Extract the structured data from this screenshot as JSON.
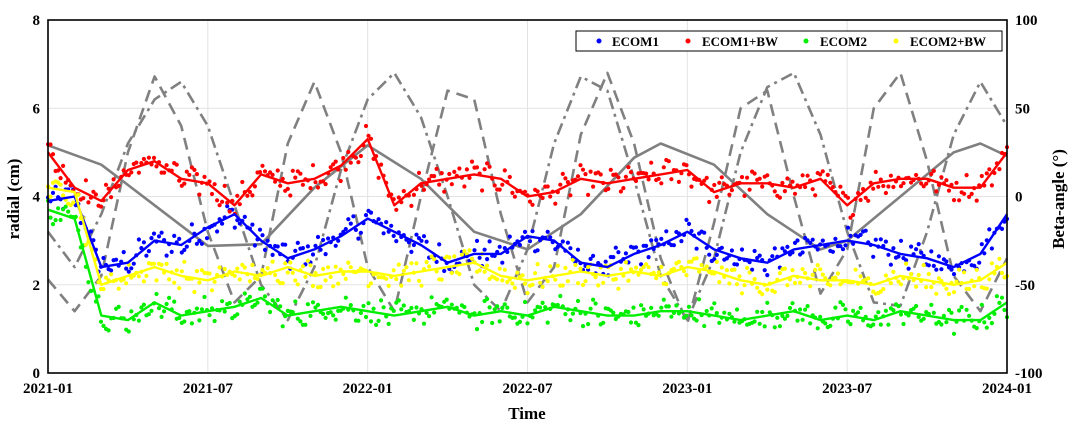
{
  "chart_data": {
    "type": "line",
    "xlabel": "Time",
    "ylabel_left": "radial (cm)",
    "ylabel_right": "Beta-angle (°)",
    "x_ticks": [
      "2021-01",
      "2021-07",
      "2022-01",
      "2022-07",
      "2023-01",
      "2023-07",
      "2024-01"
    ],
    "x_range": [
      "2021-01",
      "2024-01"
    ],
    "y_left_ticks": [
      "0",
      "2",
      "4",
      "6",
      "8"
    ],
    "y_left_range": [
      0,
      8
    ],
    "y_right_ticks": [
      "100",
      "50",
      "0",
      "-50",
      "-100"
    ],
    "y_right_range": [
      -100,
      100
    ],
    "grid": true,
    "legend_position": "top-right",
    "series": [
      {
        "name": "ECOM1",
        "color": "#0000ff",
        "axis": "left",
        "style": "points+smooth",
        "x": [
          "2021-01",
          "2021-02",
          "2021-03",
          "2021-04",
          "2021-05",
          "2021-06",
          "2021-07",
          "2021-08",
          "2021-09",
          "2021-10",
          "2021-11",
          "2021-12",
          "2022-01",
          "2022-02",
          "2022-03",
          "2022-04",
          "2022-05",
          "2022-06",
          "2022-07",
          "2022-08",
          "2022-09",
          "2022-10",
          "2022-11",
          "2022-12",
          "2023-01",
          "2023-02",
          "2023-03",
          "2023-04",
          "2023-05",
          "2023-06",
          "2023-07",
          "2023-08",
          "2023-09",
          "2023-10",
          "2023-11",
          "2023-12",
          "2024-01"
        ],
        "values": [
          3.9,
          4.0,
          2.4,
          2.5,
          3.0,
          2.9,
          3.3,
          3.6,
          3.0,
          2.6,
          2.8,
          3.1,
          3.5,
          3.2,
          2.9,
          2.5,
          2.7,
          2.7,
          3.1,
          3.0,
          2.5,
          2.4,
          2.7,
          2.9,
          3.2,
          2.8,
          2.6,
          2.5,
          2.8,
          2.9,
          3.0,
          2.9,
          2.7,
          2.6,
          2.4,
          2.7,
          3.6
        ]
      },
      {
        "name": "ECOM1+BW",
        "color": "#ff0000",
        "axis": "left",
        "style": "points+smooth",
        "x": [
          "2021-01",
          "2021-02",
          "2021-03",
          "2021-04",
          "2021-05",
          "2021-06",
          "2021-07",
          "2021-08",
          "2021-09",
          "2021-10",
          "2021-11",
          "2021-12",
          "2022-01",
          "2022-02",
          "2022-03",
          "2022-04",
          "2022-05",
          "2022-06",
          "2022-07",
          "2022-08",
          "2022-09",
          "2022-10",
          "2022-11",
          "2022-12",
          "2023-01",
          "2023-02",
          "2023-03",
          "2023-04",
          "2023-05",
          "2023-06",
          "2023-07",
          "2023-08",
          "2023-09",
          "2023-10",
          "2023-11",
          "2023-12",
          "2024-01"
        ],
        "values": [
          5.0,
          4.2,
          3.9,
          4.6,
          4.8,
          4.4,
          4.3,
          3.8,
          4.5,
          4.3,
          4.4,
          4.7,
          5.3,
          3.8,
          4.3,
          4.4,
          4.5,
          4.4,
          4.0,
          4.1,
          4.4,
          4.3,
          4.4,
          4.5,
          4.6,
          4.1,
          4.3,
          4.3,
          4.2,
          4.4,
          3.8,
          4.3,
          4.4,
          4.4,
          4.2,
          4.2,
          5.0
        ]
      },
      {
        "name": "ECOM2",
        "color": "#00ee00",
        "axis": "left",
        "style": "points+smooth",
        "x": [
          "2021-01",
          "2021-02",
          "2021-03",
          "2021-04",
          "2021-05",
          "2021-06",
          "2021-07",
          "2021-08",
          "2021-09",
          "2021-10",
          "2021-11",
          "2021-12",
          "2022-01",
          "2022-02",
          "2022-03",
          "2022-04",
          "2022-05",
          "2022-06",
          "2022-07",
          "2022-08",
          "2022-09",
          "2022-10",
          "2022-11",
          "2022-12",
          "2023-01",
          "2023-02",
          "2023-03",
          "2023-04",
          "2023-05",
          "2023-06",
          "2023-07",
          "2023-08",
          "2023-09",
          "2023-10",
          "2023-11",
          "2023-12",
          "2024-01"
        ],
        "values": [
          3.7,
          3.5,
          1.3,
          1.2,
          1.6,
          1.3,
          1.4,
          1.5,
          1.7,
          1.3,
          1.4,
          1.5,
          1.4,
          1.3,
          1.4,
          1.5,
          1.3,
          1.4,
          1.3,
          1.5,
          1.4,
          1.3,
          1.3,
          1.4,
          1.4,
          1.3,
          1.2,
          1.3,
          1.4,
          1.2,
          1.3,
          1.2,
          1.4,
          1.3,
          1.2,
          1.2,
          1.6
        ]
      },
      {
        "name": "ECOM2+BW",
        "color": "#ffff00",
        "axis": "left",
        "style": "points+smooth",
        "x": [
          "2021-01",
          "2021-02",
          "2021-03",
          "2021-04",
          "2021-05",
          "2021-06",
          "2021-07",
          "2021-08",
          "2021-09",
          "2021-10",
          "2021-11",
          "2021-12",
          "2022-01",
          "2022-02",
          "2022-03",
          "2022-04",
          "2022-05",
          "2022-06",
          "2022-07",
          "2022-08",
          "2022-09",
          "2022-10",
          "2022-11",
          "2022-12",
          "2023-01",
          "2023-02",
          "2023-03",
          "2023-04",
          "2023-05",
          "2023-06",
          "2023-07",
          "2023-08",
          "2023-09",
          "2023-10",
          "2023-11",
          "2023-12",
          "2024-01"
        ],
        "values": [
          4.2,
          4.1,
          2.0,
          2.2,
          2.4,
          2.2,
          2.1,
          2.3,
          2.2,
          2.4,
          2.2,
          2.3,
          2.3,
          2.2,
          2.3,
          2.4,
          2.5,
          2.2,
          2.1,
          2.2,
          2.3,
          2.2,
          2.3,
          2.2,
          2.4,
          2.3,
          2.1,
          2.0,
          2.2,
          2.1,
          2.1,
          2.0,
          2.2,
          2.1,
          2.0,
          2.1,
          2.5
        ]
      },
      {
        "name": "",
        "color": "#808080",
        "axis": "right",
        "style": "solid",
        "x": [
          "2021-01",
          "2021-03",
          "2021-05",
          "2021-07",
          "2021-09",
          "2021-11",
          "2022-01",
          "2022-03",
          "2022-05",
          "2022-07",
          "2022-09",
          "2022-11",
          "2022-12",
          "2023-02",
          "2023-04",
          "2023-06",
          "2023-07",
          "2023-09",
          "2023-11",
          "2023-12",
          "2024-01"
        ],
        "values": [
          29,
          18,
          -5,
          -28,
          -27,
          5,
          29,
          10,
          -20,
          -30,
          -10,
          22,
          30,
          18,
          -10,
          -30,
          -25,
          0,
          25,
          30,
          23
        ]
      },
      {
        "name": "",
        "color": "#808080",
        "axis": "right",
        "style": "dashed",
        "x": [
          "2021-01",
          "2021-02",
          "2021-03",
          "2021-04",
          "2021-05",
          "2021-06",
          "2021-07",
          "2021-08",
          "2021-09",
          "2021-10",
          "2021-11",
          "2021-12",
          "2022-01",
          "2022-02",
          "2022-03",
          "2022-04",
          "2022-05",
          "2022-06",
          "2022-07",
          "2022-08",
          "2022-09",
          "2022-10",
          "2022-11",
          "2022-12",
          "2023-01",
          "2023-02",
          "2023-03",
          "2023-04",
          "2023-05",
          "2023-06",
          "2023-07",
          "2023-08",
          "2023-09",
          "2023-10",
          "2023-11",
          "2023-12",
          "2024-01"
        ],
        "values": [
          -47,
          -65,
          -45,
          25,
          68,
          40,
          -20,
          -60,
          -45,
          30,
          65,
          25,
          -40,
          -65,
          0,
          60,
          55,
          -10,
          -60,
          -40,
          35,
          70,
          30,
          -35,
          -72,
          -15,
          50,
          60,
          0,
          -55,
          -30,
          50,
          70,
          20,
          -45,
          -65,
          -35
        ]
      },
      {
        "name": "",
        "color": "#808080",
        "axis": "right",
        "style": "dashdot",
        "x": [
          "2021-01",
          "2021-02",
          "2021-03",
          "2021-04",
          "2021-05",
          "2021-06",
          "2021-07",
          "2021-08",
          "2021-09",
          "2021-10",
          "2021-11",
          "2021-12",
          "2022-01",
          "2022-02",
          "2022-03",
          "2022-04",
          "2022-05",
          "2022-06",
          "2022-07",
          "2022-08",
          "2022-09",
          "2022-10",
          "2022-11",
          "2022-12",
          "2023-01",
          "2023-02",
          "2023-03",
          "2023-04",
          "2023-05",
          "2023-06",
          "2023-07",
          "2023-08",
          "2023-09",
          "2023-10",
          "2023-11",
          "2023-12",
          "2024-01"
        ],
        "values": [
          -20,
          -40,
          -10,
          30,
          55,
          65,
          40,
          -5,
          -50,
          -70,
          -40,
          15,
          55,
          70,
          45,
          0,
          -50,
          -65,
          -30,
          30,
          68,
          60,
          10,
          -45,
          -70,
          -35,
          25,
          62,
          70,
          35,
          -20,
          -60,
          -62,
          -20,
          35,
          65,
          40
        ]
      }
    ]
  }
}
